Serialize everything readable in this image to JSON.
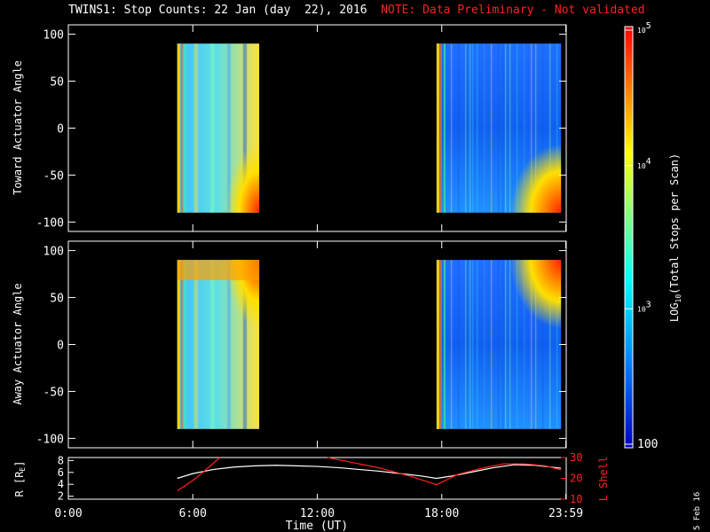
{
  "title": {
    "main": "TWINS1: Stop Counts: 22 Jan (day  22), 2016",
    "note": "NOTE: Data Preliminary - Not validated"
  },
  "date_stamp": "5 Feb 16",
  "chart_data": [
    {
      "type": "heatmap",
      "panel": "toward",
      "ylabel": "Toward Actuator Angle",
      "xlim": [
        0,
        24
      ],
      "ylim": [
        -110,
        110
      ],
      "yticks": [
        100,
        50,
        0,
        -50,
        -100
      ],
      "grid": false,
      "data_intervals_hours": [
        [
          5.25,
          9.2
        ],
        [
          17.75,
          23.75
        ]
      ],
      "angle_range": [
        -90,
        90
      ]
    },
    {
      "type": "heatmap",
      "panel": "away",
      "ylabel": "Away Actuator Angle",
      "xlim": [
        0,
        24
      ],
      "ylim": [
        -110,
        110
      ],
      "yticks": [
        100,
        50,
        0,
        -50,
        -100
      ],
      "grid": false,
      "data_intervals_hours": [
        [
          5.25,
          9.2
        ],
        [
          17.75,
          23.75
        ]
      ],
      "angle_range": [
        -90,
        90
      ]
    },
    {
      "type": "line",
      "panel": "orbit",
      "xlabel": "Time (UT)",
      "xlim": [
        0,
        24
      ],
      "xticks": [
        {
          "value": 0,
          "label": "0:00"
        },
        {
          "value": 6,
          "label": "6:00"
        },
        {
          "value": 12,
          "label": "12:00"
        },
        {
          "value": 18,
          "label": "18:00"
        },
        {
          "value": 23.98,
          "label": "23:59"
        }
      ],
      "left_axis": {
        "label": "R [R",
        "sub": "E",
        "close": "]",
        "ylim": [
          1.5,
          8.5
        ],
        "ticks": [
          2,
          4,
          6,
          8
        ],
        "color": "#ffffff"
      },
      "right_axis": {
        "label": "L Shell",
        "ylim": [
          10,
          30
        ],
        "ticks": [
          10,
          20,
          30
        ],
        "color": "#ff2020"
      },
      "series": [
        {
          "axis": "left",
          "color": "#ffffff",
          "x": [
            5.25,
            6.0,
            7.0,
            8.0,
            9.0,
            10.0,
            11.0,
            12.0,
            13.0,
            14.0,
            15.0,
            16.0,
            17.0,
            17.75,
            18.5,
            19.5,
            20.5,
            21.5,
            22.5,
            23.75
          ],
          "y": [
            5.0,
            5.8,
            6.5,
            6.9,
            7.1,
            7.2,
            7.1,
            7.0,
            6.8,
            6.5,
            6.2,
            5.8,
            5.4,
            5.0,
            5.4,
            6.1,
            6.8,
            7.3,
            7.2,
            6.7
          ]
        },
        {
          "axis": "right",
          "color": "#ff2020",
          "segments": [
            {
              "x": [
                5.25,
                6.0,
                6.5,
                7.3
              ],
              "y": [
                14,
                19,
                23,
                30
              ]
            },
            {
              "x": [
                12.5,
                13.5,
                15.0,
                16.5,
                17.75,
                18.8,
                20.0,
                21.0,
                22.0,
                23.0,
                23.75
              ],
              "y": [
                30,
                28,
                25,
                21,
                17,
                22,
                25,
                27,
                27,
                26,
                24
              ]
            }
          ]
        }
      ]
    }
  ],
  "colorbar": {
    "label": "LOG",
    "label_sub": "10",
    "label_rest": "(Total Stops per Scan)",
    "ticks": [
      {
        "exp": "5",
        "base": "10"
      },
      {
        "exp": "4",
        "base": "10"
      },
      {
        "exp": "3",
        "base": "10"
      },
      {
        "plain": "100"
      }
    ],
    "colors": [
      "#ff0000",
      "#ff8000",
      "#ffff00",
      "#80ff80",
      "#00ffff",
      "#0080ff",
      "#0000c0"
    ]
  }
}
